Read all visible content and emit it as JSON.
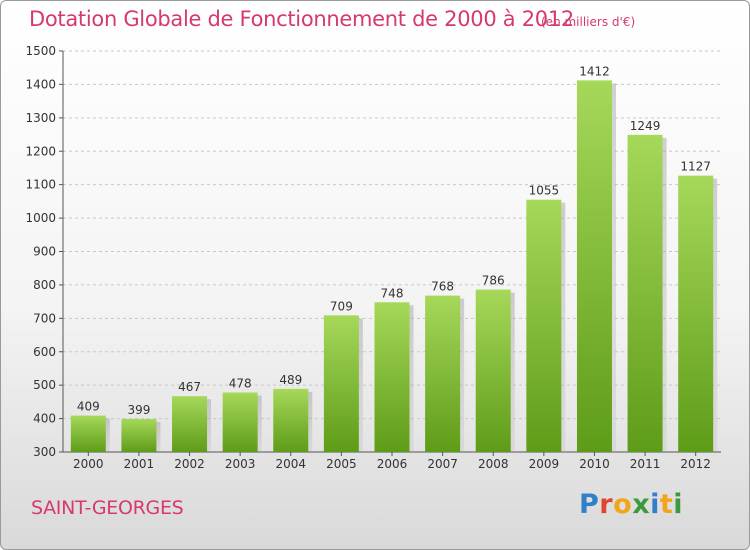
{
  "header": {
    "title": "Dotation Globale de Fonctionnement de 2000 à 2012",
    "unit": "(en milliers d'€)"
  },
  "commune": "SAINT-GEORGES",
  "logo": {
    "text": "Proxiti",
    "letters": [
      {
        "ch": "P",
        "color": "#2f80c8"
      },
      {
        "ch": "r",
        "color": "#e0452f"
      },
      {
        "ch": "o",
        "color": "#f2a51a"
      },
      {
        "ch": "x",
        "color": "#3b9a3b"
      },
      {
        "ch": "i",
        "color": "#2f80c8"
      },
      {
        "ch": "t",
        "color": "#f2a51a"
      },
      {
        "ch": "i",
        "color": "#3b9a3b"
      }
    ]
  },
  "colors": {
    "title": "#d63a6a",
    "bar_top": "#a6d85a",
    "bar_bottom": "#5e9c18",
    "grid": "#c8c8c8",
    "axis_text": "#333333"
  },
  "chart_data": {
    "type": "bar",
    "categories": [
      "2000",
      "2001",
      "2002",
      "2003",
      "2004",
      "2005",
      "2006",
      "2007",
      "2008",
      "2009",
      "2010",
      "2011",
      "2012"
    ],
    "values": [
      409,
      399,
      467,
      478,
      489,
      709,
      748,
      768,
      786,
      1055,
      1412,
      1249,
      1127
    ],
    "title": "Dotation Globale de Fonctionnement de 2000 à 2012",
    "subtitle": "(en milliers d'€)",
    "ylim": [
      300,
      1500
    ],
    "yticks": [
      300,
      400,
      500,
      600,
      700,
      800,
      900,
      1000,
      1100,
      1200,
      1300,
      1400,
      1500
    ],
    "grid": true,
    "legend": "none"
  }
}
